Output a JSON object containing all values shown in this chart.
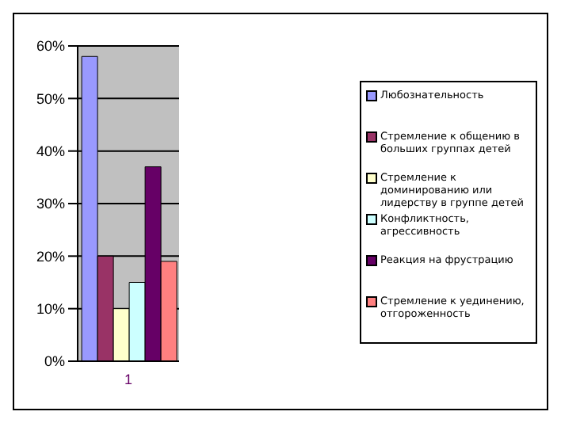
{
  "chart_data": {
    "type": "bar",
    "categories": [
      "1"
    ],
    "series": [
      {
        "name": "Любознательность",
        "color": "#9999ff",
        "values": [
          58
        ]
      },
      {
        "name": "Стремление к общению в больших группах детей",
        "color": "#993366",
        "values": [
          20
        ]
      },
      {
        "name": "Стремление к доминированию или лидерству в группе детей",
        "color": "#ffffcc",
        "values": [
          10
        ]
      },
      {
        "name": "Конфликтность, агрессивность",
        "color": "#ccffff",
        "values": [
          15
        ]
      },
      {
        "name": "Реакция на фрустрацию",
        "color": "#660066",
        "values": [
          37
        ]
      },
      {
        "name": "Стремление к уединению, отгороженность",
        "color": "#ff8080",
        "values": [
          19
        ]
      }
    ],
    "ylim": [
      0,
      60
    ],
    "yticks": [
      {
        "value": 0,
        "label": "0%"
      },
      {
        "value": 10,
        "label": "10%"
      },
      {
        "value": 20,
        "label": "20%"
      },
      {
        "value": 30,
        "label": "30%"
      },
      {
        "value": 40,
        "label": "40%"
      },
      {
        "value": 50,
        "label": "50%"
      },
      {
        "value": 60,
        "label": "60%"
      }
    ],
    "grid": "y",
    "legend": "right"
  }
}
